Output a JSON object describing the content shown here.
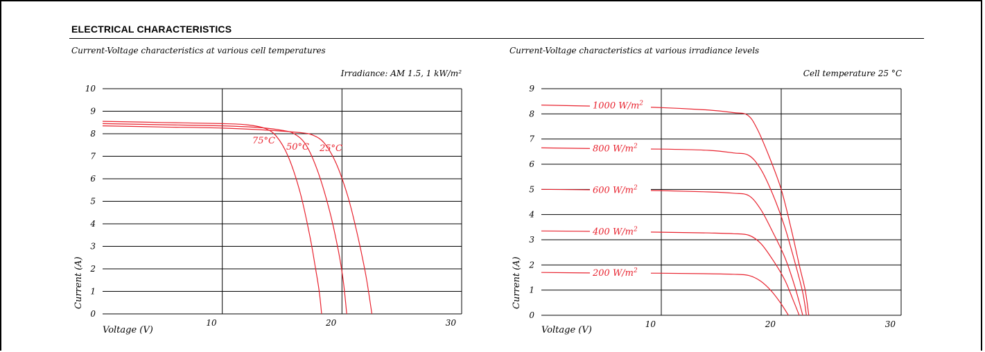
{
  "section": {
    "title": "ELECTRICAL CHARACTERISTICS"
  },
  "colors": {
    "curve": "#e8222e",
    "grid": "#000000"
  },
  "chart_data": [
    {
      "type": "line",
      "title": "Current-Voltage characteristics at various cell temperatures",
      "note": "Irradiance: AM 1.5, 1 kW/m²",
      "xlabel": "Voltage (V)",
      "ylabel": "Current (A)",
      "xlim": [
        0,
        30
      ],
      "ylim": [
        0,
        10
      ],
      "x_ticks": [
        10,
        20,
        30
      ],
      "y_ticks": [
        0,
        1,
        2,
        3,
        4,
        5,
        6,
        7,
        8,
        9,
        10
      ],
      "grid": true,
      "series": [
        {
          "name": "75°C",
          "points": [
            [
              0,
              8.55
            ],
            [
              5,
              8.5
            ],
            [
              10,
              8.45
            ],
            [
              12,
              8.4
            ],
            [
              13.5,
              8.25
            ],
            [
              14.5,
              7.9
            ],
            [
              15.5,
              7.0
            ],
            [
              16.5,
              5.4
            ],
            [
              17.3,
              3.5
            ],
            [
              17.8,
              2.0
            ],
            [
              18.1,
              1.0
            ],
            [
              18.3,
              0
            ]
          ]
        },
        {
          "name": "50°C",
          "points": [
            [
              0,
              8.45
            ],
            [
              5,
              8.4
            ],
            [
              10,
              8.35
            ],
            [
              13,
              8.28
            ],
            [
              15,
              8.15
            ],
            [
              16,
              8.0
            ],
            [
              17,
              7.5
            ],
            [
              18,
              6.3
            ],
            [
              19,
              4.5
            ],
            [
              19.7,
              2.8
            ],
            [
              20.1,
              1.5
            ],
            [
              20.4,
              0
            ]
          ]
        },
        {
          "name": "25°C",
          "points": [
            [
              0,
              8.35
            ],
            [
              5,
              8.3
            ],
            [
              10,
              8.25
            ],
            [
              14,
              8.15
            ],
            [
              16.5,
              8.05
            ],
            [
              17.5,
              7.95
            ],
            [
              18.5,
              7.6
            ],
            [
              19.5,
              6.7
            ],
            [
              20.5,
              5.2
            ],
            [
              21.3,
              3.5
            ],
            [
              22,
              1.7
            ],
            [
              22.5,
              0
            ]
          ]
        }
      ]
    },
    {
      "type": "line",
      "title": "Current-Voltage characteristics at various irradiance levels",
      "note": "Cell temperature 25 °C",
      "xlabel": "Voltage (V)",
      "ylabel": "Current (A)",
      "xlim": [
        0,
        30
      ],
      "ylim": [
        0,
        9
      ],
      "x_ticks": [
        10,
        20,
        30
      ],
      "y_ticks": [
        0,
        1,
        2,
        3,
        4,
        5,
        6,
        7,
        8,
        9
      ],
      "grid": true,
      "series": [
        {
          "name": "1000 W/m2",
          "points": [
            [
              0,
              8.35
            ],
            [
              5,
              8.3
            ],
            [
              10,
              8.25
            ],
            [
              14,
              8.15
            ],
            [
              16,
              8.05
            ],
            [
              17.2,
              7.95
            ],
            [
              18,
              7.4
            ],
            [
              19,
              6.3
            ],
            [
              20,
              5.0
            ],
            [
              20.8,
              3.5
            ],
            [
              21.5,
              2.0
            ],
            [
              22,
              1.0
            ],
            [
              22.3,
              0
            ]
          ]
        },
        {
          "name": "800 W/m2",
          "points": [
            [
              0,
              6.65
            ],
            [
              5,
              6.62
            ],
            [
              10,
              6.6
            ],
            [
              14,
              6.55
            ],
            [
              16,
              6.45
            ],
            [
              17.3,
              6.35
            ],
            [
              18.3,
              5.8
            ],
            [
              19.3,
              4.8
            ],
            [
              20.3,
              3.5
            ],
            [
              21.2,
              2.0
            ],
            [
              21.8,
              0.9
            ],
            [
              22.1,
              0
            ]
          ]
        },
        {
          "name": "600 W/m2",
          "points": [
            [
              0,
              5.0
            ],
            [
              5,
              4.98
            ],
            [
              10,
              4.95
            ],
            [
              14,
              4.9
            ],
            [
              16,
              4.85
            ],
            [
              17.3,
              4.75
            ],
            [
              18.3,
              4.2
            ],
            [
              19.3,
              3.3
            ],
            [
              20.3,
              2.3
            ],
            [
              21.1,
              1.2
            ],
            [
              21.8,
              0
            ]
          ]
        },
        {
          "name": "400 W/m2",
          "points": [
            [
              0,
              3.35
            ],
            [
              5,
              3.33
            ],
            [
              10,
              3.3
            ],
            [
              14,
              3.27
            ],
            [
              16,
              3.24
            ],
            [
              17.3,
              3.18
            ],
            [
              18.3,
              2.85
            ],
            [
              19.3,
              2.2
            ],
            [
              20.3,
              1.4
            ],
            [
              21.0,
              0.6
            ],
            [
              21.5,
              0
            ]
          ]
        },
        {
          "name": "200 W/m2",
          "points": [
            [
              0,
              1.7
            ],
            [
              5,
              1.68
            ],
            [
              10,
              1.67
            ],
            [
              14,
              1.65
            ],
            [
              16,
              1.63
            ],
            [
              17.3,
              1.58
            ],
            [
              18.3,
              1.35
            ],
            [
              19.2,
              0.95
            ],
            [
              20.0,
              0.45
            ],
            [
              20.6,
              0
            ]
          ]
        }
      ]
    }
  ]
}
